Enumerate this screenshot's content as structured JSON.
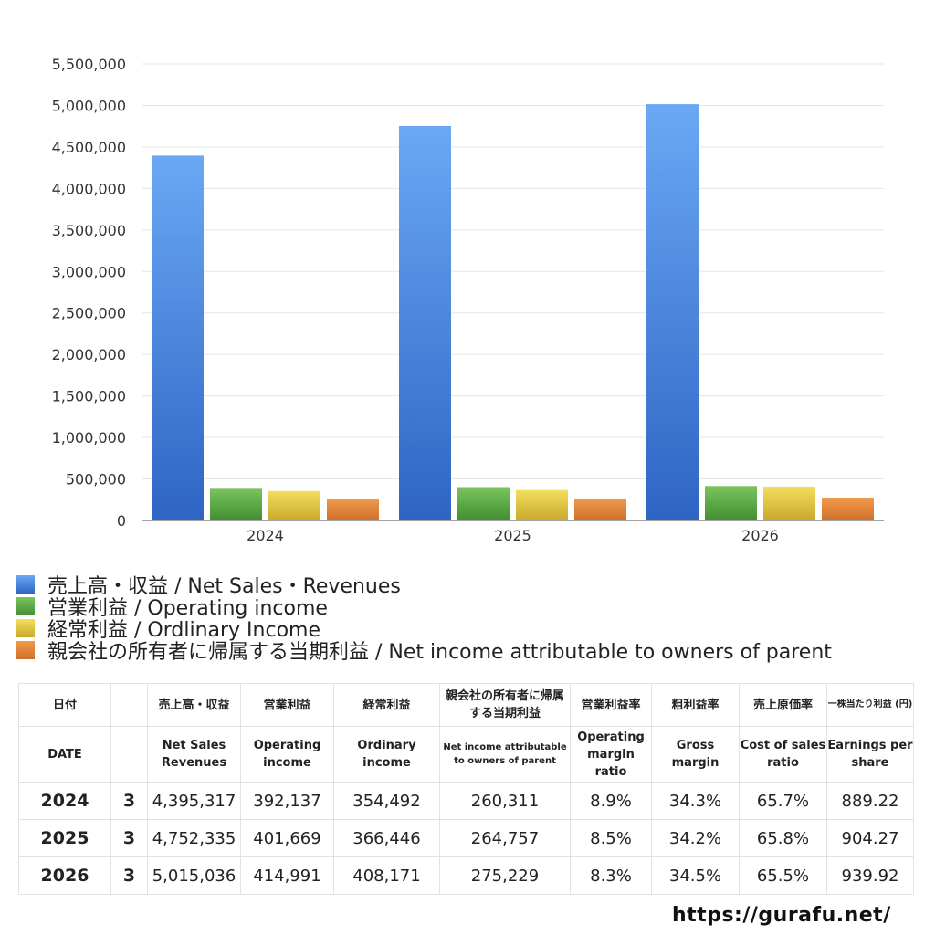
{
  "chart_data": {
    "type": "bar",
    "categories": [
      "2024",
      "2025",
      "2026"
    ],
    "ylim": [
      0,
      5500000
    ],
    "yticks": [
      0,
      500000,
      1000000,
      1500000,
      2000000,
      2500000,
      3000000,
      3500000,
      4000000,
      4500000,
      5000000,
      5500000
    ],
    "ytick_labels": [
      "0",
      "500,000",
      "1,000,000",
      "1,500,000",
      "2,000,000",
      "2,500,000",
      "3,000,000",
      "3,500,000",
      "4,000,000",
      "4,500,000",
      "5,000,000",
      "5,500,000"
    ],
    "grid": true,
    "legend_position": "bottom",
    "series": [
      {
        "name": "売上高・収益 / Net Sales・Revenues",
        "color_top": "#6aa8f4",
        "color_bottom": "#2f64c4",
        "values": [
          4395317,
          4752335,
          5015036
        ]
      },
      {
        "name": "営業利益 / Operating income",
        "color_top": "#7cc45e",
        "color_bottom": "#3f8f33",
        "values": [
          392137,
          401669,
          414991
        ]
      },
      {
        "name": "経常利益 / Ordlinary Income",
        "color_top": "#f3de5e",
        "color_bottom": "#c9a82a",
        "values": [
          354492,
          366446,
          408171
        ]
      },
      {
        "name": "親会社の所有者に帰属する当期利益 / Net income attributable to owners of parent",
        "color_top": "#f09a4c",
        "color_bottom": "#d0702a",
        "values": [
          260311,
          264757,
          275229
        ]
      }
    ]
  },
  "table": {
    "header_jp": [
      "日付",
      "売上高・収益",
      "営業利益",
      "経常利益",
      "親会社の所有者に帰属する当期利益",
      "営業利益率",
      "粗利益率",
      "売上原価率",
      "一株当たり利益 (円)"
    ],
    "header_en": [
      "DATE",
      "Net Sales Revenues",
      "Operating income",
      "Ordinary income",
      "Net income attributable to owners of parent",
      "Operating margin ratio",
      "Gross margin",
      "Cost of sales ratio",
      "Earnings per share"
    ],
    "rows": [
      {
        "year": "2024",
        "month": "3",
        "net_sales": "4,395,317",
        "operating_income": "392,137",
        "ordinary_income": "354,492",
        "net_income": "260,311",
        "operating_margin": "8.9%",
        "gross_margin": "34.3%",
        "cost_ratio": "65.7%",
        "eps": "889.22"
      },
      {
        "year": "2025",
        "month": "3",
        "net_sales": "4,752,335",
        "operating_income": "401,669",
        "ordinary_income": "366,446",
        "net_income": "264,757",
        "operating_margin": "8.5%",
        "gross_margin": "34.2%",
        "cost_ratio": "65.8%",
        "eps": "904.27"
      },
      {
        "year": "2026",
        "month": "3",
        "net_sales": "5,015,036",
        "operating_income": "414,991",
        "ordinary_income": "408,171",
        "net_income": "275,229",
        "operating_margin": "8.3%",
        "gross_margin": "34.5%",
        "cost_ratio": "65.5%",
        "eps": "939.92"
      }
    ]
  },
  "footer": {
    "site": "https://gurafu.net/"
  }
}
